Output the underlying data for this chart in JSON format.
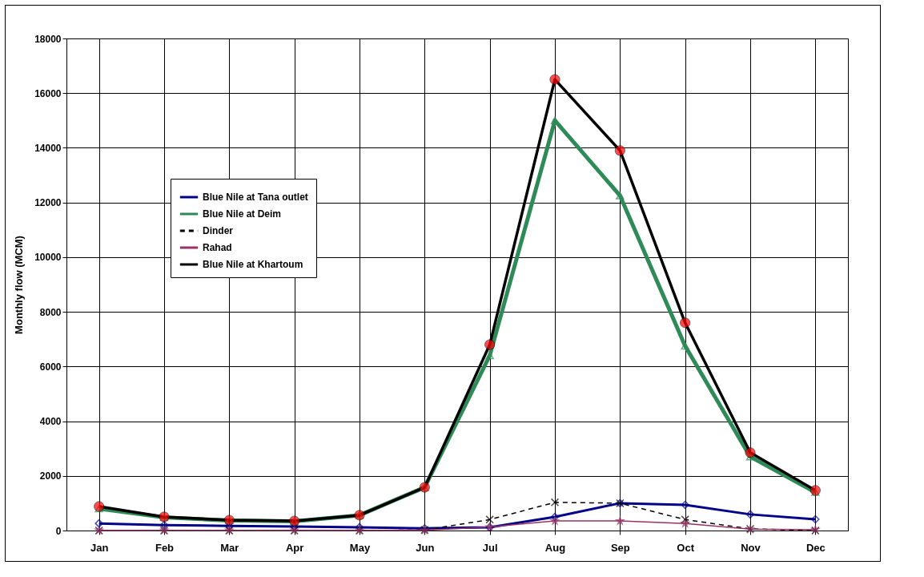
{
  "chart_data": {
    "type": "line",
    "ylabel": "Monthly flow (MCM)",
    "categories": [
      "Jan",
      "Feb",
      "Mar",
      "Apr",
      "May",
      "Jun",
      "Jul",
      "Aug",
      "Sep",
      "Oct",
      "Nov",
      "Dec"
    ],
    "series": [
      {
        "name": "Blue Nile at Tana outlet",
        "color": "#00008b",
        "marker": "diamond",
        "line_style": "solid",
        "values": [
          260,
          200,
          170,
          150,
          120,
          80,
          120,
          500,
          1000,
          940,
          590,
          410
        ]
      },
      {
        "name": "Blue Nile at Deim",
        "color": "#2e8b57",
        "marker": "triangle",
        "line_style": "solid",
        "values": [
          800,
          480,
          370,
          340,
          560,
          1580,
          6400,
          15000,
          12250,
          6750,
          2700,
          1400
        ]
      },
      {
        "name": "Dinder",
        "color": "#000000",
        "marker": "cross",
        "line_style": "dashed",
        "values": [
          0,
          0,
          0,
          0,
          0,
          20,
          400,
          1030,
          1000,
          400,
          60,
          0
        ]
      },
      {
        "name": "Rahad",
        "color": "#993366",
        "marker": "star",
        "line_style": "solid",
        "values": [
          10,
          10,
          10,
          10,
          10,
          10,
          130,
          350,
          350,
          260,
          50,
          30
        ]
      },
      {
        "name": "Blue Nile at Khartoum",
        "color": "#000000",
        "marker": "circle",
        "line_style": "solid",
        "values": [
          880,
          500,
          380,
          350,
          560,
          1580,
          6800,
          16500,
          13900,
          7600,
          2850,
          1470
        ]
      }
    ],
    "ylim": [
      0,
      18000
    ],
    "yticks": [
      0,
      2000,
      4000,
      6000,
      8000,
      10000,
      12000,
      14000,
      16000,
      18000
    ],
    "grid": true,
    "legend": "left"
  }
}
